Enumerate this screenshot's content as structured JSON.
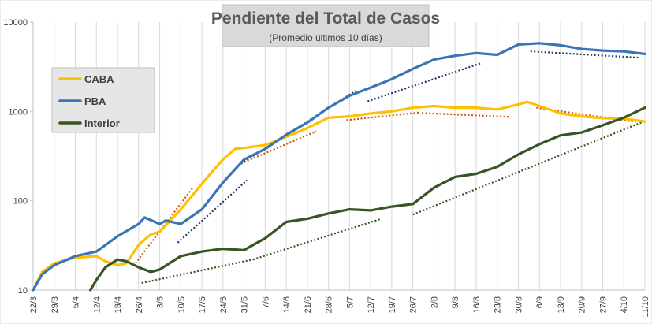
{
  "chart_data": {
    "type": "line",
    "title": "Pendiente del Total de Casos",
    "subtitle": "(Promedio últimos 10 días)",
    "y_scale": "log",
    "ylim": [
      10,
      10000
    ],
    "y_ticks": [
      "10",
      "100",
      "1000",
      "10000"
    ],
    "x_tick_labels": [
      "22/3",
      "29/3",
      "5/4",
      "12/4",
      "19/4",
      "26/4",
      "3/5",
      "10/5",
      "17/5",
      "24/5",
      "31/5",
      "7/6",
      "14/6",
      "21/6",
      "28/6",
      "5/7",
      "12/7",
      "19/7",
      "26/7",
      "2/8",
      "9/8",
      "16/8",
      "23/8",
      "30/8",
      "6/9",
      "13/9",
      "20/9",
      "27/9",
      "4/10",
      "11/10"
    ],
    "x_start": "22/3",
    "grid": "vertical",
    "legend_position": "left",
    "series": [
      {
        "name": "CABA",
        "color": "#ffc000",
        "x": [
          "22/3",
          "25/3",
          "29/3",
          "5/4",
          "12/4",
          "15/4",
          "19/4",
          "22/4",
          "26/4",
          "30/4",
          "3/5",
          "10/5",
          "17/5",
          "24/5",
          "28/5",
          "31/5",
          "7/6",
          "14/6",
          "21/6",
          "28/6",
          "5/7",
          "12/7",
          "19/7",
          "26/7",
          "2/8",
          "9/8",
          "16/8",
          "23/8",
          "30/8",
          "2/9",
          "6/9",
          "13/9",
          "20/9",
          "27/9",
          "4/10",
          "11/10"
        ],
        "values": [
          10,
          16,
          20,
          23,
          24,
          21,
          19,
          20,
          32,
          42,
          45,
          80,
          155,
          290,
          380,
          390,
          420,
          520,
          650,
          850,
          880,
          950,
          1000,
          1100,
          1150,
          1100,
          1100,
          1050,
          1200,
          1280,
          1150,
          950,
          880,
          840,
          830,
          770
        ]
      },
      {
        "name": "PBA",
        "color": "#3a75b8",
        "x": [
          "22/3",
          "25/3",
          "29/3",
          "5/4",
          "12/4",
          "19/4",
          "26/4",
          "28/4",
          "3/5",
          "5/5",
          "10/5",
          "17/5",
          "24/5",
          "31/5",
          "7/6",
          "14/6",
          "21/6",
          "28/6",
          "5/7",
          "12/7",
          "19/7",
          "26/7",
          "2/8",
          "9/8",
          "16/8",
          "23/8",
          "30/8",
          "6/9",
          "13/9",
          "20/9",
          "27/9",
          "4/10",
          "11/10"
        ],
        "values": [
          10,
          15,
          19,
          24,
          27,
          40,
          55,
          65,
          55,
          60,
          55,
          80,
          160,
          290,
          380,
          550,
          750,
          1100,
          1500,
          1850,
          2300,
          3000,
          3800,
          4200,
          4500,
          4300,
          5600,
          5800,
          5500,
          5000,
          4800,
          4700,
          4400
        ]
      },
      {
        "name": "Interior",
        "color": "#375623",
        "x": [
          "10/4",
          "12/4",
          "15/4",
          "19/4",
          "22/4",
          "26/4",
          "30/4",
          "3/5",
          "10/5",
          "17/5",
          "24/5",
          "31/5",
          "3/6",
          "7/6",
          "14/6",
          "21/6",
          "28/6",
          "5/7",
          "12/7",
          "19/7",
          "26/7",
          "2/8",
          "9/8",
          "16/8",
          "23/8",
          "30/8",
          "6/9",
          "13/9",
          "20/9",
          "27/9",
          "4/10",
          "11/10"
        ],
        "values": [
          10,
          13,
          18,
          22,
          21,
          18,
          16,
          17,
          24,
          27,
          29,
          28,
          32,
          38,
          58,
          63,
          72,
          80,
          78,
          86,
          92,
          140,
          185,
          200,
          240,
          330,
          430,
          540,
          580,
          700,
          850,
          1100
        ]
      }
    ],
    "trend_lines": [
      {
        "color": "#c55a11",
        "x": [
          "25/4",
          "14/5"
        ],
        "values": [
          20,
          140
        ]
      },
      {
        "color": "#c55a11",
        "x": [
          "31/5",
          "24/6"
        ],
        "values": [
          270,
          600
        ]
      },
      {
        "color": "#c55a11",
        "x": [
          "4/7",
          "28/7"
        ],
        "values": [
          800,
          970
        ]
      },
      {
        "color": "#c55a11",
        "x": [
          "29/7",
          "27/8"
        ],
        "values": [
          960,
          870
        ]
      },
      {
        "color": "#c55a11",
        "x": [
          "5/9",
          "8/10"
        ],
        "values": [
          1100,
          760
        ]
      },
      {
        "color": "#1f3864",
        "x": [
          "9/5",
          "1/6"
        ],
        "values": [
          34,
          170
        ]
      },
      {
        "color": "#1f3864",
        "x": [
          "30/5",
          "7/7"
        ],
        "values": [
          260,
          1700
        ]
      },
      {
        "color": "#1f3864",
        "x": [
          "11/7",
          "18/8"
        ],
        "values": [
          1300,
          3500
        ]
      },
      {
        "color": "#1f3864",
        "x": [
          "3/9",
          "9/10"
        ],
        "values": [
          4700,
          4000
        ]
      },
      {
        "color": "#375623",
        "x": [
          "27/4",
          "3/6"
        ],
        "values": [
          12,
          22
        ]
      },
      {
        "color": "#375623",
        "x": [
          "3/6",
          "15/7"
        ],
        "values": [
          22,
          62
        ]
      },
      {
        "color": "#375623",
        "x": [
          "26/7",
          "11/10"
        ],
        "values": [
          70,
          780
        ]
      }
    ]
  }
}
